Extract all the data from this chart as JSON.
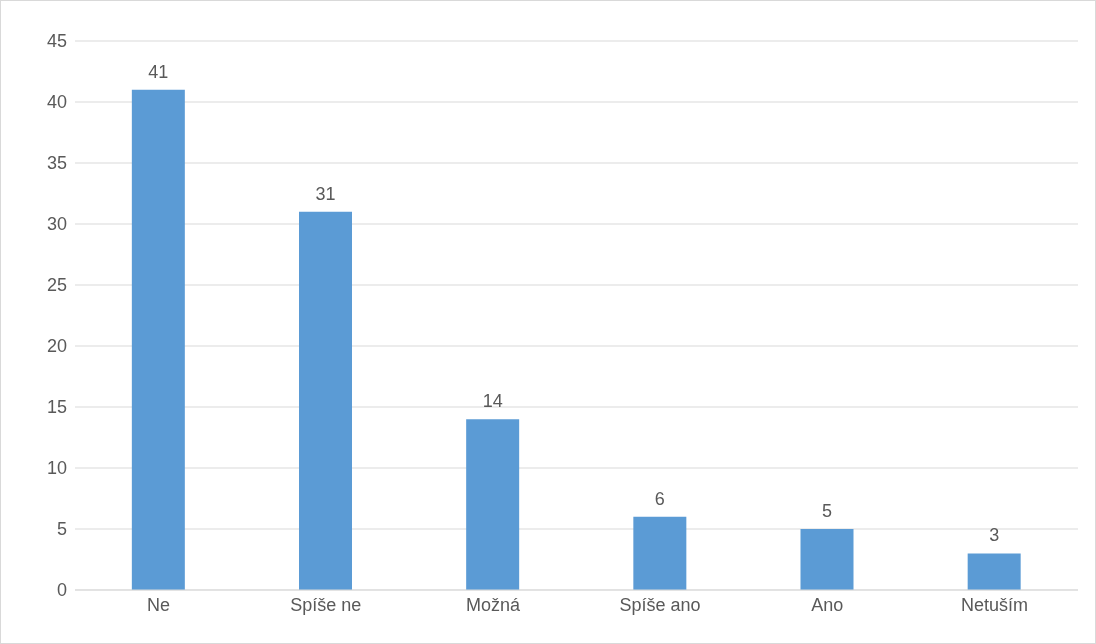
{
  "chart_data": {
    "type": "bar",
    "categories": [
      "Ne",
      "Spíše ne",
      "Možná",
      "Spíše ano",
      "Ano",
      "Netuším"
    ],
    "values": [
      41,
      31,
      14,
      6,
      5,
      3
    ],
    "color": "#5b9bd5",
    "ylim": [
      0,
      45
    ],
    "yticks": [
      0,
      5,
      10,
      15,
      20,
      25,
      30,
      35,
      40,
      45
    ],
    "grid": "y",
    "data_labels": true,
    "legend": false
  }
}
